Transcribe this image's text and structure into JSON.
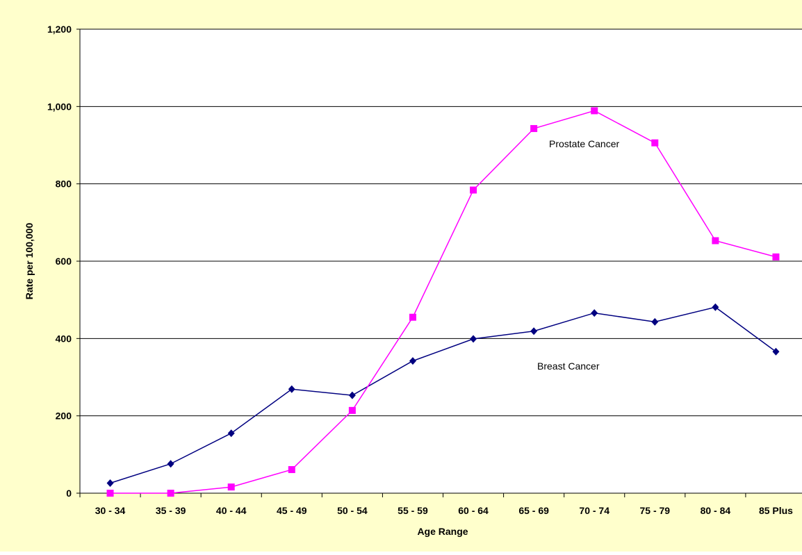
{
  "chart_data": {
    "type": "line",
    "title": "",
    "xlabel": "Age Range",
    "ylabel": "Rate per 100,000",
    "categories": [
      "30 - 34",
      "35 - 39",
      "40 - 44",
      "45 - 49",
      "50 - 54",
      "55 - 59",
      "60 - 64",
      "65 - 69",
      "70 - 74",
      "75 - 79",
      "80 - 84",
      "85  Plus"
    ],
    "ylim": [
      0,
      1200
    ],
    "yticks": [
      0,
      200,
      400,
      600,
      800,
      1000,
      1200
    ],
    "ytick_labels": [
      "0",
      "200",
      "400",
      "600",
      "800",
      "1,000",
      "1,200"
    ],
    "grid": true,
    "legend": "none (inline labels)",
    "series": [
      {
        "name": "Breast Cancer",
        "color": "#000080",
        "marker": "diamond",
        "values": [
          26,
          76,
          155,
          269,
          253,
          342,
          399,
          419,
          466,
          443,
          481,
          366
        ]
      },
      {
        "name": "Prostate Cancer",
        "color": "#ff00ff",
        "marker": "square",
        "values": [
          0,
          0,
          16,
          61,
          214,
          455,
          784,
          943,
          989,
          906,
          653,
          611
        ]
      }
    ]
  }
}
